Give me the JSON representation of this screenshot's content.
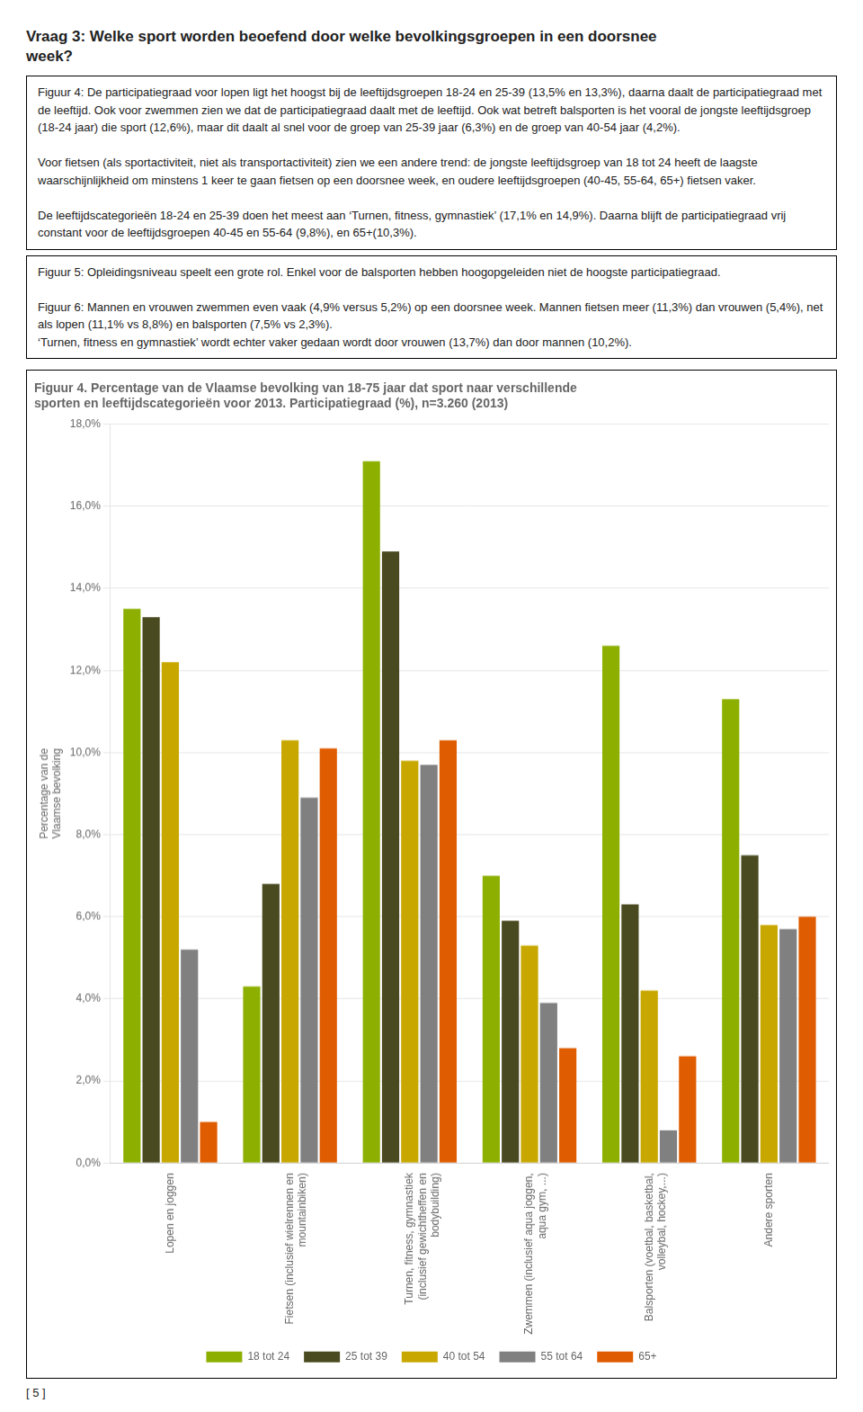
{
  "header": "Vraag 3: Welke sport worden beoefend door welke bevolkingsgroepen in een doorsnee\nweek?",
  "text_boxes": [
    "Figuur 4: De participatiegraad voor lopen ligt het hoogst bij de leeftijdsgroepen 18-24 en 25-39 (13,5% en 13,3%), daarna daalt de participatiegraad met de leeftijd. Ook voor zwemmen zien we dat de participatiegraad daalt met de leeftijd. Ook wat betreft balsporten is het vooral de jongste leeftijdsgroep (18-24 jaar) die sport (12,6%), maar dit daalt al snel voor de groep van 25-39 jaar (6,3%) en de groep van 40-54 jaar (4,2%).\n\nVoor fietsen (als sportactiviteit, niet als transportactiviteit) zien we een andere trend: de jongste leeftijdsgroep van 18 tot 24 heeft de laagste waarschijnlijkheid om minstens 1 keer te gaan fietsen op een doorsnee week, en oudere leeftijdsgroepen (40-45, 55-64, 65+) fietsen vaker.\n\nDe leeftijdscategorieën 18-24 en 25-39 doen het meest aan ‘Turnen, fitness, gymnastiek’ (17,1% en 14,9%). Daarna blijft de participatiegraad vrij constant voor de leeftijdsgroepen 40-45 en 55-64 (9,8%), en 65+(10,3%).",
    "Figuur 5: Opleidingsniveau speelt een grote rol. Enkel voor de balsporten hebben hoogopgeleiden niet de hoogste participatiegraad.\n\nFiguur 6: Mannen en vrouwen zwemmen even vaak (4,9% versus 5,2%) op een doorsnee week. Mannen fietsen meer (11,3%) dan vrouwen (5,4%), net als lopen (11,1% vs 8,8%) en balsporten (7,5% vs 2,3%).\n‘Turnen, fitness en gymnastiek’ wordt echter vaker gedaan wordt door vrouwen (13,7%) dan door mannen (10,2%)."
  ],
  "page_number": "[ 5 ]",
  "chart_data": {
    "type": "bar",
    "title": "Figuur 4. Percentage van de Vlaamse bevolking van 18-75 jaar dat sport naar verschillende\nsporten en leeftijdscategorieën voor 2013. Participatiegraad (%), n=3.260 (2013)",
    "ylabel": "Percentage van de\nVlaamse bevolking",
    "categories": [
      "Lopen en joggen",
      "Fietsen (inclusief wielrennen en\nmountainbiken)",
      "Turnen, fitness, gymnastiek\n(inclusief gewichtheffen en\nbodybuilding)",
      "Zwemmen (inclusief aqua joggen,\naqua gym, ...)",
      "Balsporten (voetbal, basketbal,\nvolleybal, hockey,...)",
      "Andere sporten"
    ],
    "series": [
      {
        "name": "18 tot 24",
        "color": "#8db000",
        "values": [
          13.5,
          4.3,
          17.1,
          7.0,
          12.6,
          11.3
        ]
      },
      {
        "name": "25 tot 39",
        "color": "#4a4a20",
        "values": [
          13.3,
          6.8,
          14.9,
          5.9,
          6.3,
          7.5
        ]
      },
      {
        "name": "40 tot 54",
        "color": "#c8a800",
        "values": [
          12.2,
          10.3,
          9.8,
          5.3,
          4.2,
          5.8
        ]
      },
      {
        "name": "55 tot 64",
        "color": "#808080",
        "values": [
          5.2,
          8.9,
          9.7,
          3.9,
          0.8,
          5.7
        ]
      },
      {
        "name": "65+",
        "color": "#e05c00",
        "values": [
          1.0,
          10.1,
          10.3,
          2.8,
          2.6,
          6.0
        ]
      }
    ],
    "ylim": [
      0,
      18
    ],
    "yticks": [
      {
        "value": 0,
        "label": "0,0%"
      },
      {
        "value": 2,
        "label": "2,0%"
      },
      {
        "value": 4,
        "label": "4,0%"
      },
      {
        "value": 6,
        "label": "6,0%"
      },
      {
        "value": 8,
        "label": "8,0%"
      },
      {
        "value": 10,
        "label": "10,0%"
      },
      {
        "value": 12,
        "label": "12,0%"
      },
      {
        "value": 14,
        "label": "14,0%"
      },
      {
        "value": 16,
        "label": "16,0%"
      },
      {
        "value": 18,
        "label": "18,0%"
      }
    ],
    "grid": true,
    "legend": "bottom"
  }
}
